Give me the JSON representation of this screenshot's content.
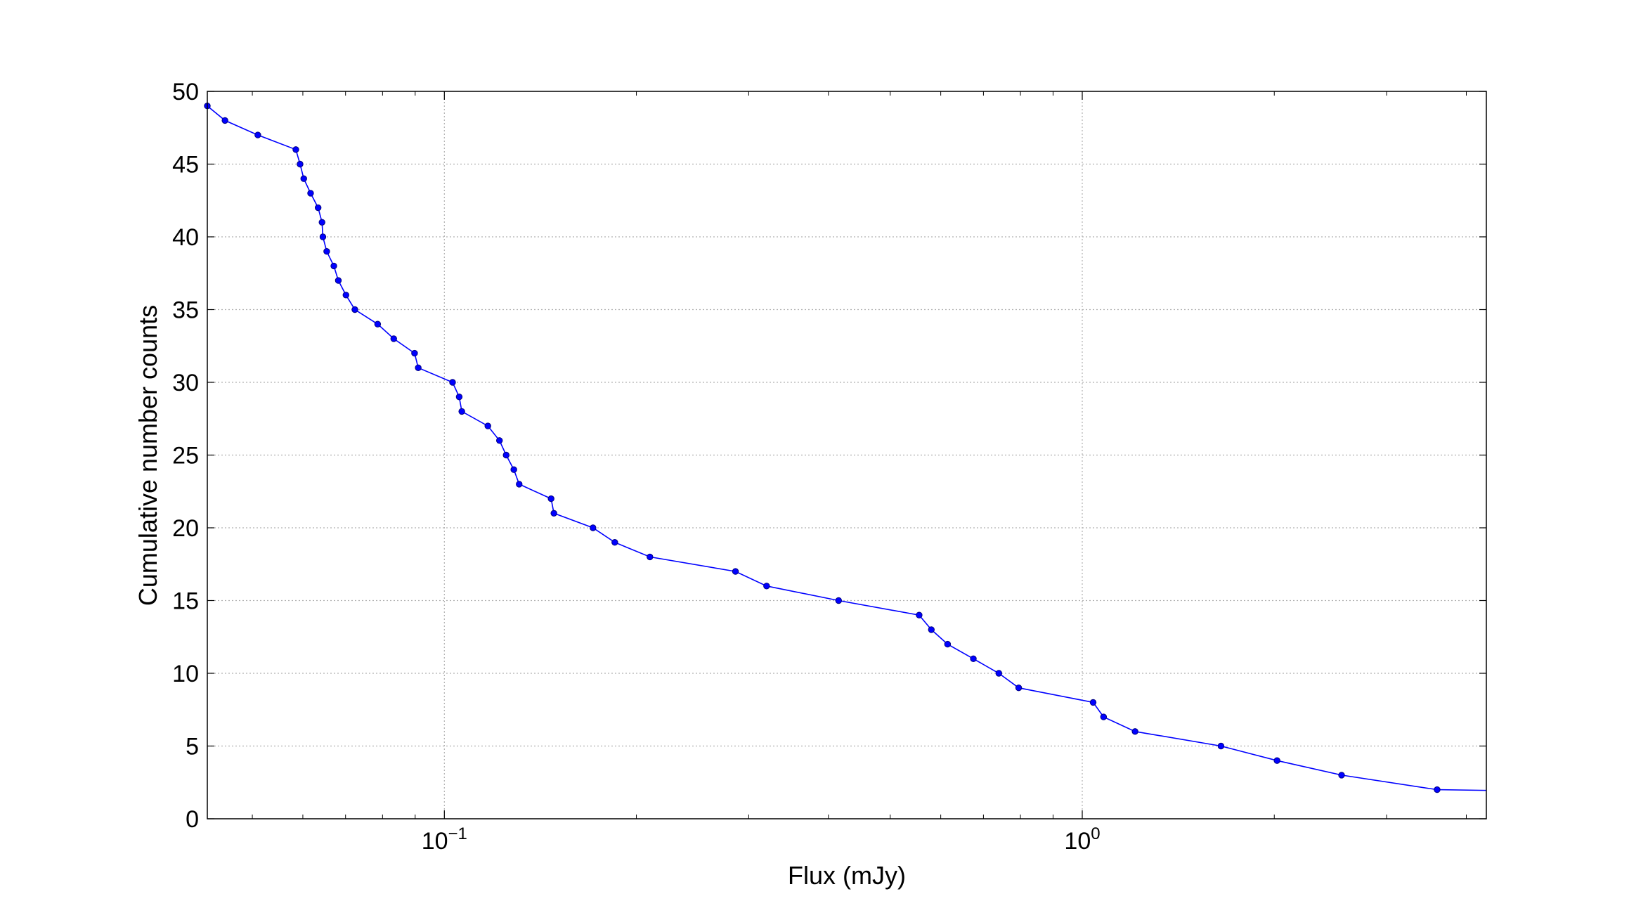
{
  "chart_data": {
    "type": "line",
    "title": "",
    "xlabel": "Flux (mJy)",
    "ylabel": "Cumulative number counts",
    "x_scale": "log",
    "xlim": [
      0.0425,
      4.3
    ],
    "ylim": [
      0,
      50
    ],
    "grid": true,
    "legend": "none",
    "x_ticks": [
      {
        "value": 0.1,
        "base": "10",
        "exp": "−1"
      },
      {
        "value": 1.0,
        "base": "10",
        "exp": "0"
      }
    ],
    "y_ticks": [
      0,
      5,
      10,
      15,
      20,
      25,
      30,
      35,
      40,
      45,
      50
    ],
    "series": [
      {
        "color": "#0000ff",
        "marker": "circle",
        "points": [
          [
            0.0425,
            49
          ],
          [
            0.0453,
            48
          ],
          [
            0.051,
            47
          ],
          [
            0.0585,
            46
          ],
          [
            0.0594,
            45
          ],
          [
            0.0602,
            44
          ],
          [
            0.0617,
            43
          ],
          [
            0.0634,
            42
          ],
          [
            0.0643,
            41
          ],
          [
            0.0645,
            40
          ],
          [
            0.0654,
            39
          ],
          [
            0.0671,
            38
          ],
          [
            0.0682,
            37
          ],
          [
            0.0701,
            36
          ],
          [
            0.0724,
            35
          ],
          [
            0.0786,
            34
          ],
          [
            0.0833,
            33
          ],
          [
            0.0898,
            32
          ],
          [
            0.091,
            31
          ],
          [
            0.103,
            30
          ],
          [
            0.1055,
            29
          ],
          [
            0.1065,
            28
          ],
          [
            0.117,
            27
          ],
          [
            0.122,
            26
          ],
          [
            0.125,
            25
          ],
          [
            0.1285,
            24
          ],
          [
            0.131,
            23
          ],
          [
            0.147,
            22
          ],
          [
            0.1485,
            21
          ],
          [
            0.171,
            20
          ],
          [
            0.185,
            19
          ],
          [
            0.21,
            18
          ],
          [
            0.286,
            17
          ],
          [
            0.32,
            16
          ],
          [
            0.415,
            15
          ],
          [
            0.555,
            14
          ],
          [
            0.58,
            13
          ],
          [
            0.615,
            12
          ],
          [
            0.675,
            11
          ],
          [
            0.74,
            10
          ],
          [
            0.795,
            9
          ],
          [
            1.04,
            8
          ],
          [
            1.08,
            7
          ],
          [
            1.21,
            6
          ],
          [
            1.65,
            5
          ],
          [
            2.02,
            4
          ],
          [
            2.55,
            3
          ],
          [
            3.6,
            2
          ],
          [
            4.3,
            1.95
          ]
        ],
        "hidden_marker_indices": [
          48
        ]
      }
    ]
  }
}
